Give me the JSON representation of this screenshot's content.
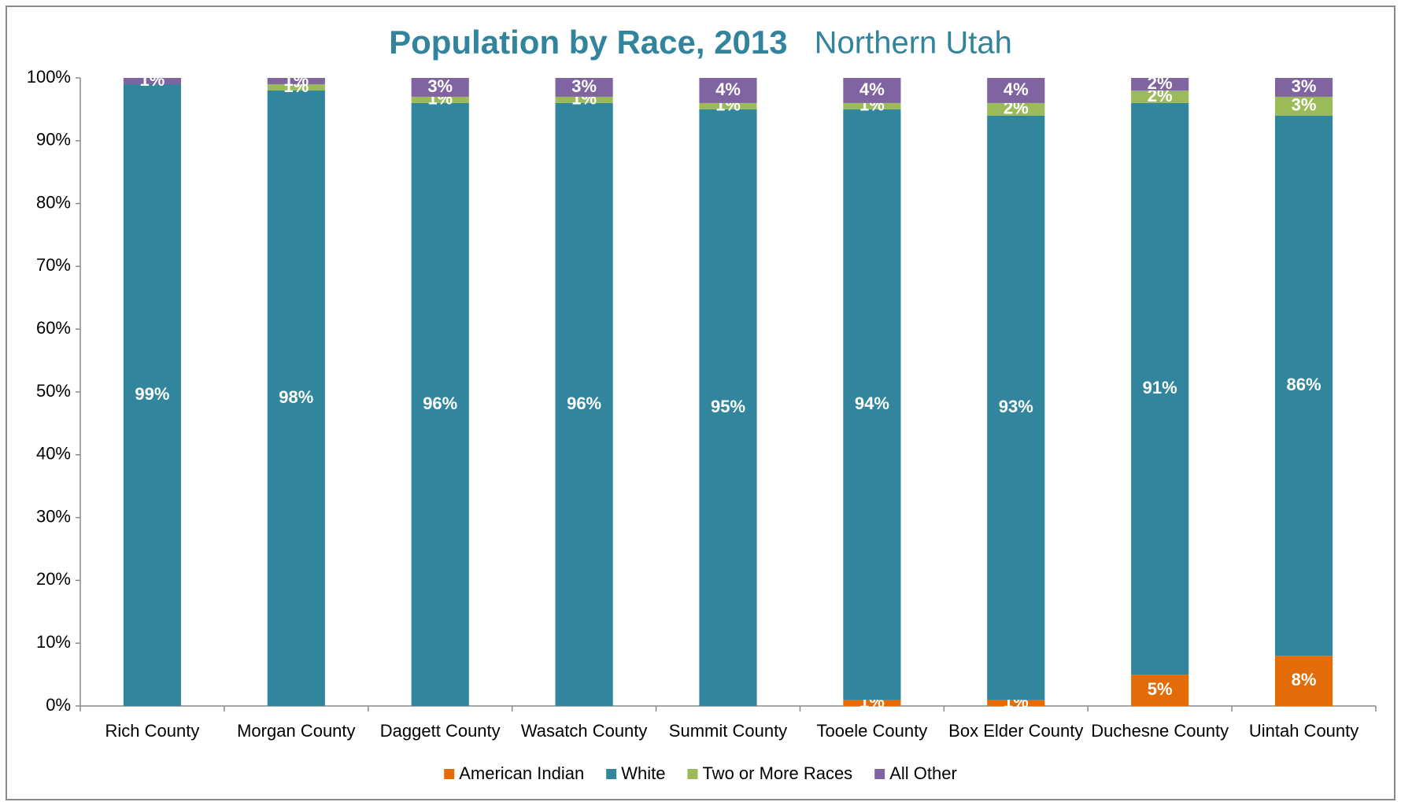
{
  "chart_data": {
    "type": "stacked_bar",
    "title": "Population by Race, 2013",
    "subtitle": "Northern Utah",
    "categories": [
      "Rich County",
      "Morgan County",
      "Daggett County",
      "Wasatch County",
      "Summit County",
      "Tooele County",
      "Box Elder County",
      "Duchesne County",
      "Uintah County"
    ],
    "series": [
      {
        "name": "American Indian",
        "color": "#e36c09",
        "values": [
          0,
          0,
          0,
          0,
          0,
          1,
          1,
          5,
          8
        ],
        "value_labels": [
          null,
          null,
          null,
          null,
          null,
          "1%",
          "1%",
          "5%",
          "8%"
        ]
      },
      {
        "name": "White",
        "color": "#31859c",
        "values": [
          99,
          98,
          96,
          96,
          95,
          94,
          93,
          91,
          86
        ],
        "value_labels": [
          "99%",
          "98%",
          "96%",
          "96%",
          "95%",
          "94%",
          "93%",
          "91%",
          "86%"
        ]
      },
      {
        "name": "Two or More Races",
        "color": "#9bbb59",
        "values": [
          0,
          1,
          1,
          1,
          1,
          1,
          2,
          2,
          3
        ],
        "value_labels": [
          null,
          "1%",
          "1%",
          "1%",
          "1%",
          "1%",
          "2%",
          "2%",
          "3%"
        ]
      },
      {
        "name": "All Other",
        "color": "#8064a2",
        "values": [
          1,
          1,
          3,
          3,
          4,
          4,
          4,
          2,
          3
        ],
        "value_labels": [
          "1%",
          "1%",
          "3%",
          "3%",
          "4%",
          "4%",
          "4%",
          "2%",
          "3%"
        ]
      }
    ],
    "ylim": [
      0,
      100
    ],
    "yticks": [
      {
        "value": 0,
        "label": "0%"
      },
      {
        "value": 10,
        "label": "10%"
      },
      {
        "value": 20,
        "label": "20%"
      },
      {
        "value": 30,
        "label": "30%"
      },
      {
        "value": 40,
        "label": "40%"
      },
      {
        "value": 50,
        "label": "50%"
      },
      {
        "value": 60,
        "label": "60%"
      },
      {
        "value": 70,
        "label": "70%"
      },
      {
        "value": 80,
        "label": "80%"
      },
      {
        "value": 90,
        "label": "90%"
      },
      {
        "value": 100,
        "label": "100%"
      }
    ],
    "legend": "bottom"
  }
}
